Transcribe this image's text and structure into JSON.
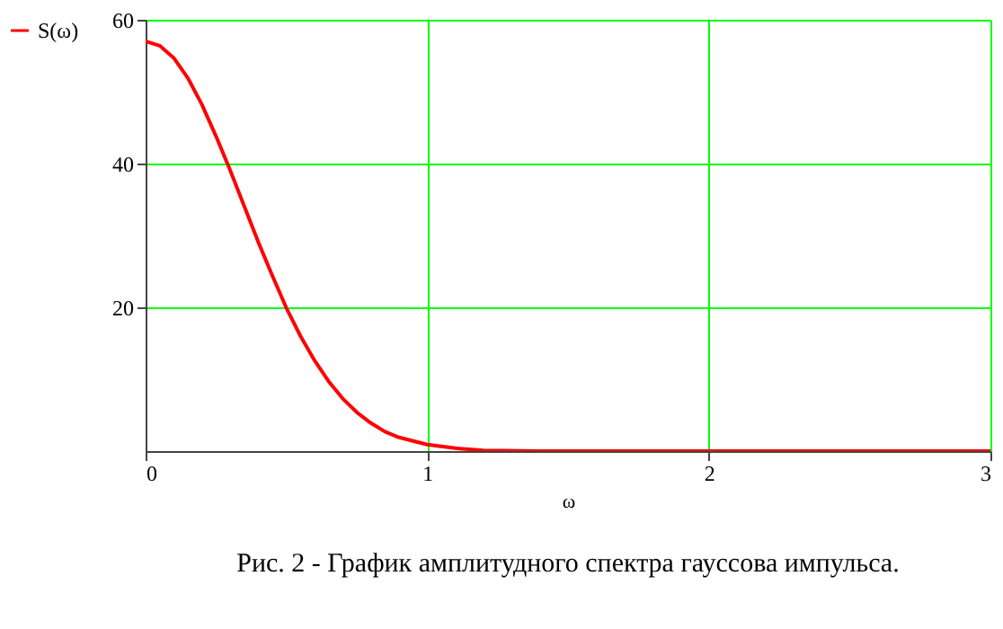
{
  "chart_data": {
    "type": "line",
    "title": "Рис. 2 - График амплитудного спектра гауссова импульса.",
    "xlabel": "ω",
    "x": [
      0,
      0.05,
      0.1,
      0.15,
      0.2,
      0.25,
      0.3,
      0.35,
      0.4,
      0.45,
      0.5,
      0.55,
      0.6,
      0.65,
      0.7,
      0.75,
      0.8,
      0.85,
      0.9,
      1.0,
      1.1,
      1.2,
      1.4,
      2,
      3
    ],
    "series": [
      {
        "name": "S(ω)",
        "color": "#ff0000",
        "values": [
          57,
          56.4,
          54.7,
          51.9,
          48.2,
          43.8,
          39.1,
          34.1,
          29.1,
          24.4,
          19.9,
          16.0,
          12.6,
          9.7,
          7.3,
          5.4,
          3.9,
          2.7,
          1.9,
          0.9,
          0.4,
          0.1,
          0,
          0,
          0
        ]
      }
    ],
    "xlim": [
      0,
      3
    ],
    "xticks": [
      0,
      1,
      2,
      3
    ],
    "ylim": [
      0,
      60
    ],
    "yticks": [
      20,
      40,
      60
    ],
    "grid": true,
    "legend": "left",
    "marker": "none",
    "line_style": "solid"
  }
}
